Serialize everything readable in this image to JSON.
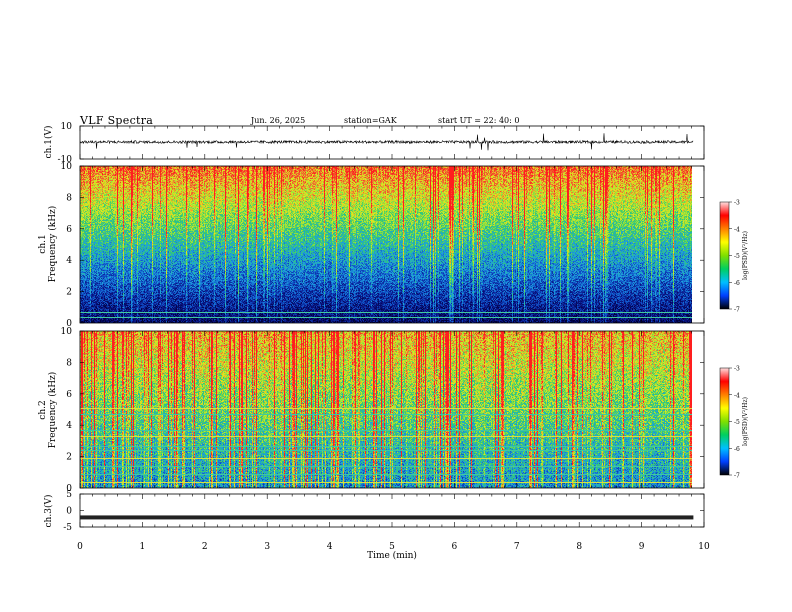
{
  "header": {
    "title": "VLF  Spectra",
    "date": "Jun. 26, 2025",
    "station": "station=GAK",
    "start": "start  UT  =   22: 40: 0"
  },
  "chart_data": [
    {
      "type": "line",
      "name": "ch1-waveform",
      "ylabel": "ch.1(V)",
      "ylim": [
        -10,
        10
      ],
      "yticks": [
        "10",
        "-10"
      ],
      "xlim": [
        0,
        10
      ]
    },
    {
      "type": "heatmap",
      "name": "ch1-spectrogram",
      "ylabel_top": "ch.1",
      "ylabel": "Frequency (kHz)",
      "ylim": [
        0,
        10
      ],
      "yticks": [
        "0",
        "2",
        "4",
        "6",
        "8",
        "10"
      ],
      "xlim": [
        0,
        9.83
      ],
      "colorbar": {
        "label": "log(PSD)(V²/Hz)",
        "range": [
          -7,
          -3
        ],
        "ticks": [
          "-3",
          "-4",
          "-5",
          "-6",
          "-7"
        ]
      }
    },
    {
      "type": "heatmap",
      "name": "ch2-spectrogram",
      "ylabel_top": "ch.2",
      "ylabel": "Frequency (kHz)",
      "ylim": [
        0,
        10
      ],
      "yticks": [
        "0",
        "2",
        "4",
        "6",
        "8",
        "10"
      ],
      "xlim": [
        0,
        9.83
      ],
      "colorbar": {
        "label": "log(PSD)(V²/Hz)",
        "range": [
          -7,
          -3
        ],
        "ticks": [
          "-3",
          "-4",
          "-5",
          "-6",
          "-7"
        ]
      }
    },
    {
      "type": "line",
      "name": "ch3-waveform",
      "ylabel": "ch.3(V)",
      "ylim": [
        -5,
        5
      ],
      "yticks": [
        "5",
        "0",
        "-5"
      ],
      "xlim": [
        0,
        10
      ],
      "xlabel": "Time  (min)",
      "xticks": [
        "0",
        "1",
        "2",
        "3",
        "4",
        "5",
        "6",
        "7",
        "8",
        "9",
        "10"
      ]
    }
  ],
  "colors": {
    "ch1_spectrum": [
      "#000044",
      "#0a1a7a",
      "#1060c0",
      "#1aa0d0",
      "#3cc070",
      "#a0e040",
      "#e0e820",
      "#e86040",
      "#ff2020"
    ],
    "colorbar": [
      "#000000",
      "#0040ff",
      "#00c0ff",
      "#00d060",
      "#80e000",
      "#ffff00",
      "#ff8000",
      "#ff0000",
      "#ffe0e0"
    ]
  }
}
